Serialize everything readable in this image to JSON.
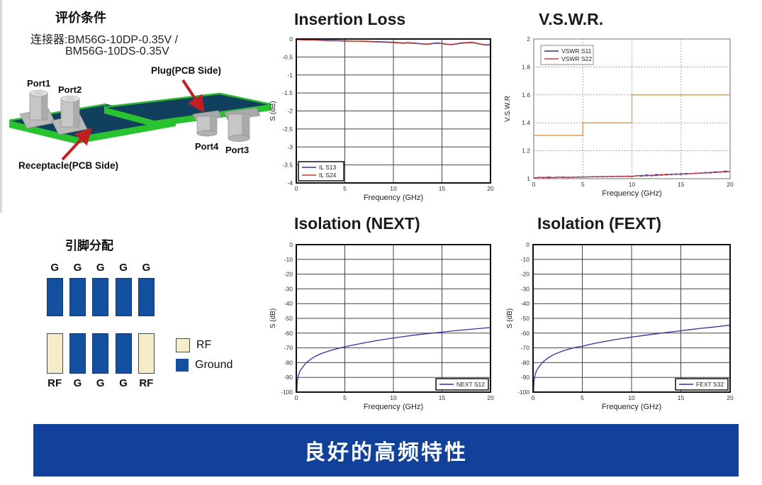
{
  "page": {
    "eval_title": "评价条件",
    "connector_line1": "连接器:BM56G-10DP-0.35V /",
    "connector_line2": "BM56G-10DS-0.35V",
    "figure": {
      "labels": {
        "port1": "Port1",
        "port2": "Port2",
        "port3": "Port3",
        "port4": "Port4",
        "plug": "Plug(PCB Side)",
        "receptacle": "Receptacle(PCB Side)"
      },
      "colors": {
        "board": "#11405f",
        "edge": "#29c32f",
        "connector": "#c6c6c6",
        "arrow": "#c21f24"
      }
    },
    "pin_assignment": {
      "title": "引脚分配",
      "top_row": [
        "G",
        "G",
        "G",
        "G",
        "G"
      ],
      "bottom_row": [
        "RF",
        "G",
        "G",
        "G",
        "RF"
      ],
      "legend": [
        {
          "label": "RF",
          "color": "#f5ecca"
        },
        {
          "label": "Ground",
          "color": "#1450a0"
        }
      ]
    },
    "banner": {
      "text": "良好的高频特性",
      "color": "#11419b"
    }
  },
  "chart_data": [
    {
      "key": "insertion_loss",
      "type": "line",
      "title": "Insertion Loss",
      "xlabel": "Frequency (GHz)",
      "ylabel": "S (dB)",
      "xlim": [
        0,
        20
      ],
      "ylim": [
        -4,
        0
      ],
      "xticks": [
        0,
        5,
        10,
        15,
        20
      ],
      "yticks": [
        0,
        -0.5,
        -1,
        -1.5,
        -2,
        -2.5,
        -3,
        -3.5,
        -4
      ],
      "grid": "solid",
      "legend_pos": "bottom-left",
      "series": [
        {
          "name": "IL S13",
          "color": "#31319e",
          "points": [
            [
              0,
              -0.01
            ],
            [
              1,
              -0.02
            ],
            [
              2,
              -0.03
            ],
            [
              3,
              -0.04
            ],
            [
              4,
              -0.04
            ],
            [
              5,
              -0.05
            ],
            [
              6,
              -0.06
            ],
            [
              7,
              -0.06
            ],
            [
              8,
              -0.07
            ],
            [
              9,
              -0.08
            ],
            [
              10,
              -0.09
            ],
            [
              10.5,
              -0.1
            ],
            [
              11,
              -0.11
            ],
            [
              11.5,
              -0.1
            ],
            [
              12,
              -0.11
            ],
            [
              12.5,
              -0.12
            ],
            [
              13,
              -0.13
            ],
            [
              13.5,
              -0.14
            ],
            [
              14,
              -0.12
            ],
            [
              14.5,
              -0.11
            ],
            [
              15,
              -0.12
            ],
            [
              15.5,
              -0.14
            ],
            [
              16,
              -0.15
            ],
            [
              16.5,
              -0.13
            ],
            [
              17,
              -0.11
            ],
            [
              17.5,
              -0.1
            ],
            [
              18,
              -0.09
            ],
            [
              18.5,
              -0.11
            ],
            [
              19,
              -0.14
            ],
            [
              19.5,
              -0.16
            ],
            [
              20,
              -0.15
            ]
          ]
        },
        {
          "name": "IL S24",
          "color": "#c43c2e",
          "points": [
            [
              0,
              -0.02
            ],
            [
              1,
              -0.03
            ],
            [
              2,
              -0.03
            ],
            [
              3,
              -0.05
            ],
            [
              4,
              -0.05
            ],
            [
              5,
              -0.06
            ],
            [
              6,
              -0.06
            ],
            [
              7,
              -0.07
            ],
            [
              8,
              -0.08
            ],
            [
              9,
              -0.09
            ],
            [
              10,
              -0.1
            ],
            [
              10.5,
              -0.11
            ],
            [
              11,
              -0.12
            ],
            [
              11.5,
              -0.11
            ],
            [
              12,
              -0.12
            ],
            [
              12.5,
              -0.13
            ],
            [
              13,
              -0.14
            ],
            [
              13.5,
              -0.15
            ],
            [
              14,
              -0.13
            ],
            [
              14.5,
              -0.12
            ],
            [
              15,
              -0.13
            ],
            [
              15.5,
              -0.15
            ],
            [
              16,
              -0.16
            ],
            [
              16.5,
              -0.14
            ],
            [
              17,
              -0.12
            ],
            [
              17.5,
              -0.11
            ],
            [
              18,
              -0.1
            ],
            [
              18.5,
              -0.12
            ],
            [
              19,
              -0.15
            ],
            [
              19.5,
              -0.17
            ],
            [
              20,
              -0.16
            ]
          ]
        }
      ]
    },
    {
      "key": "vswr",
      "type": "line",
      "title": "V.S.W.R.",
      "xlabel": "Frequency (GHz)",
      "ylabel": "V.S.W.R",
      "xlim": [
        0,
        20
      ],
      "ylim": [
        1,
        2
      ],
      "xticks": [
        0,
        5,
        10,
        15,
        20
      ],
      "yticks": [
        1,
        1.2,
        1.4,
        1.6,
        1.8,
        2
      ],
      "grid": "dotted",
      "legend_pos": "top-left",
      "limit_line": {
        "color": "#d79b45",
        "points": [
          [
            0,
            1.31
          ],
          [
            5,
            1.31
          ],
          [
            5,
            1.4
          ],
          [
            10,
            1.4
          ],
          [
            10,
            1.6
          ],
          [
            20,
            1.6
          ]
        ]
      },
      "series": [
        {
          "name": "VSWR S11",
          "color": "#31319e",
          "points": [
            [
              0,
              1.005
            ],
            [
              0.5,
              1.01
            ],
            [
              1,
              1.006
            ],
            [
              1.5,
              1.012
            ],
            [
              2,
              1.007
            ],
            [
              2.5,
              1.01
            ],
            [
              3,
              1.012
            ],
            [
              3.5,
              1.008
            ],
            [
              4,
              1.012
            ],
            [
              4.5,
              1.01
            ],
            [
              5,
              1.013
            ],
            [
              5.5,
              1.012
            ],
            [
              6,
              1.015
            ],
            [
              6.5,
              1.013
            ],
            [
              7,
              1.016
            ],
            [
              7.5,
              1.014
            ],
            [
              8,
              1.017
            ],
            [
              8.5,
              1.015
            ],
            [
              9,
              1.018
            ],
            [
              9.5,
              1.016
            ],
            [
              10,
              1.015
            ],
            [
              10.5,
              1.022
            ],
            [
              11,
              1.018
            ],
            [
              11.5,
              1.028
            ],
            [
              12,
              1.02
            ],
            [
              12.5,
              1.03
            ],
            [
              13,
              1.025
            ],
            [
              13.5,
              1.032
            ],
            [
              14,
              1.028
            ],
            [
              14.5,
              1.035
            ],
            [
              15,
              1.03
            ],
            [
              15.5,
              1.038
            ],
            [
              16,
              1.035
            ],
            [
              16.5,
              1.04
            ],
            [
              17,
              1.038
            ],
            [
              17.5,
              1.045
            ],
            [
              18,
              1.04
            ],
            [
              18.5,
              1.05
            ],
            [
              19,
              1.045
            ],
            [
              19.5,
              1.055
            ],
            [
              20,
              1.048
            ]
          ]
        },
        {
          "name": "VSWR S22",
          "color": "#bf4048",
          "points": [
            [
              0,
              1.004
            ],
            [
              0.5,
              1.008
            ],
            [
              1,
              1.01
            ],
            [
              1.5,
              1.006
            ],
            [
              2,
              1.009
            ],
            [
              2.5,
              1.012
            ],
            [
              3,
              1.008
            ],
            [
              3.5,
              1.011
            ],
            [
              4,
              1.009
            ],
            [
              4.5,
              1.013
            ],
            [
              5,
              1.011
            ],
            [
              5.5,
              1.014
            ],
            [
              6,
              1.012
            ],
            [
              6.5,
              1.016
            ],
            [
              7,
              1.013
            ],
            [
              7.5,
              1.017
            ],
            [
              8,
              1.014
            ],
            [
              8.5,
              1.018
            ],
            [
              9,
              1.015
            ],
            [
              9.5,
              1.019
            ],
            [
              10,
              1.017
            ],
            [
              10.5,
              1.02
            ],
            [
              11,
              1.024
            ],
            [
              11.5,
              1.02
            ],
            [
              12,
              1.026
            ],
            [
              12.5,
              1.022
            ],
            [
              13,
              1.03
            ],
            [
              13.5,
              1.026
            ],
            [
              14,
              1.033
            ],
            [
              14.5,
              1.03
            ],
            [
              15,
              1.036
            ],
            [
              15.5,
              1.032
            ],
            [
              16,
              1.038
            ],
            [
              16.5,
              1.036
            ],
            [
              17,
              1.042
            ],
            [
              17.5,
              1.04
            ],
            [
              18,
              1.046
            ],
            [
              18.5,
              1.043
            ],
            [
              19,
              1.05
            ],
            [
              19.5,
              1.047
            ],
            [
              20,
              1.052
            ]
          ]
        }
      ]
    },
    {
      "key": "isolation_next",
      "type": "line",
      "title": "Isolation (NEXT)",
      "xlabel": "Frequency (GHz)",
      "ylabel": "S (dB)",
      "xlim": [
        0,
        20
      ],
      "ylim": [
        -100,
        0
      ],
      "xticks": [
        0,
        5,
        10,
        15,
        20
      ],
      "yticks": [
        0,
        -10,
        -20,
        -30,
        -40,
        -50,
        -60,
        -70,
        -80,
        -90,
        -100
      ],
      "grid": "solid",
      "legend_pos": "bottom-right",
      "series": [
        {
          "name": "NEXT S12",
          "color": "#31319e",
          "points": [
            [
              0.05,
              -100
            ],
            [
              0.1,
              -93
            ],
            [
              0.2,
              -89
            ],
            [
              0.35,
              -86
            ],
            [
              0.5,
              -84.5
            ],
            [
              0.75,
              -82.3
            ],
            [
              1,
              -80.3
            ],
            [
              1.5,
              -77.6
            ],
            [
              2,
              -75.6
            ],
            [
              2.5,
              -74.1
            ],
            [
              3,
              -72.9
            ],
            [
              3.5,
              -71.8
            ],
            [
              4,
              -70.9
            ],
            [
              4.5,
              -70.1
            ],
            [
              5,
              -69.3
            ],
            [
              6,
              -67.9
            ],
            [
              7,
              -66.6
            ],
            [
              8,
              -65.4
            ],
            [
              9,
              -64.3
            ],
            [
              10,
              -63.3
            ],
            [
              11,
              -62.4
            ],
            [
              12,
              -61.5
            ],
            [
              13,
              -60.7
            ],
            [
              14,
              -60
            ],
            [
              15,
              -59.3
            ],
            [
              16,
              -58.6
            ],
            [
              17,
              -58
            ],
            [
              18,
              -57.4
            ],
            [
              19,
              -56.8
            ],
            [
              20,
              -56.2
            ]
          ]
        }
      ]
    },
    {
      "key": "isolation_fext",
      "type": "line",
      "title": "Isolation (FEXT)",
      "xlabel": "Frequency (GHz)",
      "ylabel": "S (dB)",
      "xlim": [
        0,
        20
      ],
      "ylim": [
        -100,
        0
      ],
      "xticks": [
        0,
        5,
        10,
        15,
        20
      ],
      "yticks": [
        0,
        -10,
        -20,
        -30,
        -40,
        -50,
        -60,
        -70,
        -80,
        -90,
        -100
      ],
      "grid": "solid",
      "legend_pos": "bottom-right",
      "series": [
        {
          "name": "FEXT S32",
          "color": "#31319e",
          "points": [
            [
              0.05,
              -100
            ],
            [
              0.1,
              -92.5
            ],
            [
              0.2,
              -88.5
            ],
            [
              0.35,
              -85.5
            ],
            [
              0.5,
              -83.8
            ],
            [
              0.75,
              -81.6
            ],
            [
              1,
              -79.6
            ],
            [
              1.5,
              -76.9
            ],
            [
              2,
              -74.9
            ],
            [
              2.5,
              -73.4
            ],
            [
              3,
              -72.2
            ],
            [
              3.5,
              -71.1
            ],
            [
              4,
              -70.2
            ],
            [
              4.5,
              -69.4
            ],
            [
              5,
              -68.9
            ],
            [
              6,
              -67.3
            ],
            [
              7,
              -66
            ],
            [
              8,
              -64.8
            ],
            [
              9,
              -63.7
            ],
            [
              10,
              -62.7
            ],
            [
              11,
              -61.8
            ],
            [
              12,
              -60.9
            ],
            [
              13,
              -60
            ],
            [
              14,
              -59.2
            ],
            [
              15,
              -58.4
            ],
            [
              16,
              -57.6
            ],
            [
              17,
              -56.8
            ],
            [
              18,
              -56.1
            ],
            [
              19,
              -55.4
            ],
            [
              20,
              -54.6
            ]
          ]
        }
      ]
    }
  ]
}
